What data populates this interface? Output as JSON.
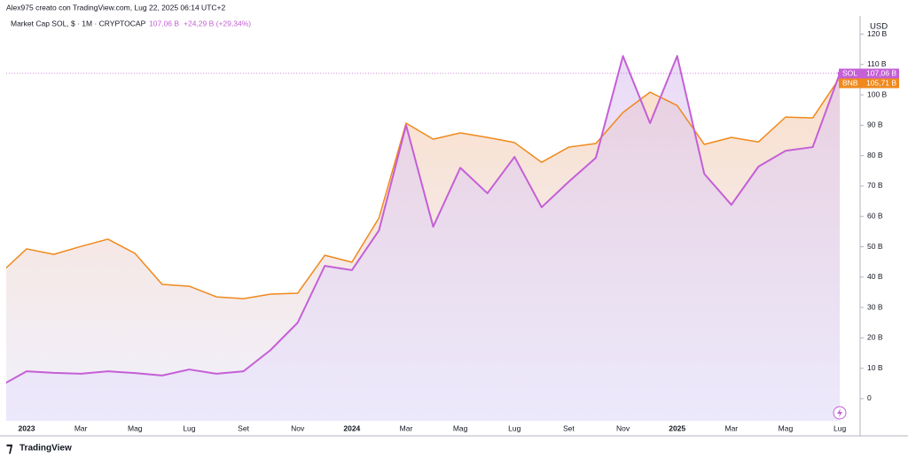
{
  "header": {
    "credit": "Alex975 creato con TradingView.com, Lug 22, 2025 06:14 UTC+2",
    "brand": "TradingView"
  },
  "chart_data": {
    "type": "line",
    "subtitle": "Market Cap SOL, $ · 1M · CRYPTOCAP",
    "change": "+24,29 B (+29,34%)",
    "y_axis_label": "USD",
    "categories": [
      null,
      "2023",
      null,
      "Mar",
      null,
      "Mag",
      null,
      "Lug",
      null,
      "Set",
      null,
      "Nov",
      null,
      "2024",
      null,
      "Mar",
      null,
      "Mag",
      null,
      "Lug",
      null,
      "Set",
      null,
      "Nov",
      null,
      "2025",
      null,
      "Mar",
      null,
      "Mag",
      null,
      "Lug"
    ],
    "series": [
      {
        "name": "SOL",
        "color": "#c45fd6",
        "values": [
          4,
          9,
          8.5,
          8.2,
          9,
          8.4,
          7.6,
          9.6,
          8.2,
          9,
          16,
          25,
          43.7,
          42.3,
          55.4,
          90,
          56.6,
          76,
          67.6,
          79.6,
          63,
          71.4,
          79.3,
          112.8,
          90.7,
          112.8,
          74,
          63.8,
          76.4,
          81.6,
          82.8,
          107.06
        ],
        "value_labels": [
          null,
          null,
          null,
          null,
          null,
          null,
          null,
          null,
          null,
          null,
          null,
          null,
          null,
          null,
          null,
          null,
          null,
          null,
          null,
          null,
          null,
          null,
          null,
          null,
          null,
          null,
          null,
          null,
          null,
          null,
          null,
          "107,06 B"
        ]
      },
      {
        "name": "BNB",
        "color": "#f0891c",
        "values": [
          41,
          49.3,
          47.5,
          50.1,
          52.5,
          47.8,
          37.6,
          37,
          33.5,
          32.9,
          34.4,
          34.7,
          47.2,
          44.9,
          59.5,
          90.7,
          85.4,
          87.5,
          86,
          84.3,
          77.8,
          82.8,
          84,
          94.2,
          100.9,
          96.5,
          83.7,
          86,
          84.5,
          92.7,
          92.4,
          105.71
        ],
        "value_labels": [
          null,
          null,
          null,
          null,
          null,
          null,
          null,
          null,
          null,
          null,
          null,
          null,
          null,
          null,
          null,
          null,
          null,
          null,
          null,
          null,
          null,
          null,
          null,
          null,
          null,
          null,
          null,
          null,
          null,
          null,
          null,
          "105,71 B"
        ]
      }
    ],
    "ylim": [
      -7.3,
      125.4
    ],
    "yticks": [
      0,
      {
        "value": 10,
        "label": "10 B"
      },
      {
        "value": 20,
        "label": "20 B"
      },
      {
        "value": 30,
        "label": "30 B"
      },
      {
        "value": 40,
        "label": "40 B"
      },
      {
        "value": 50,
        "label": "50 B"
      },
      {
        "value": 60,
        "label": "60 B"
      },
      {
        "value": 70,
        "label": "70 B"
      },
      {
        "value": 80,
        "label": "80 B"
      },
      {
        "value": 90,
        "label": "90 B"
      },
      {
        "value": 100,
        "label": "100 B"
      },
      {
        "value": 110,
        "label": "110 B"
      },
      {
        "value": 120,
        "label": "120 B"
      }
    ],
    "grid": false,
    "area": true
  }
}
